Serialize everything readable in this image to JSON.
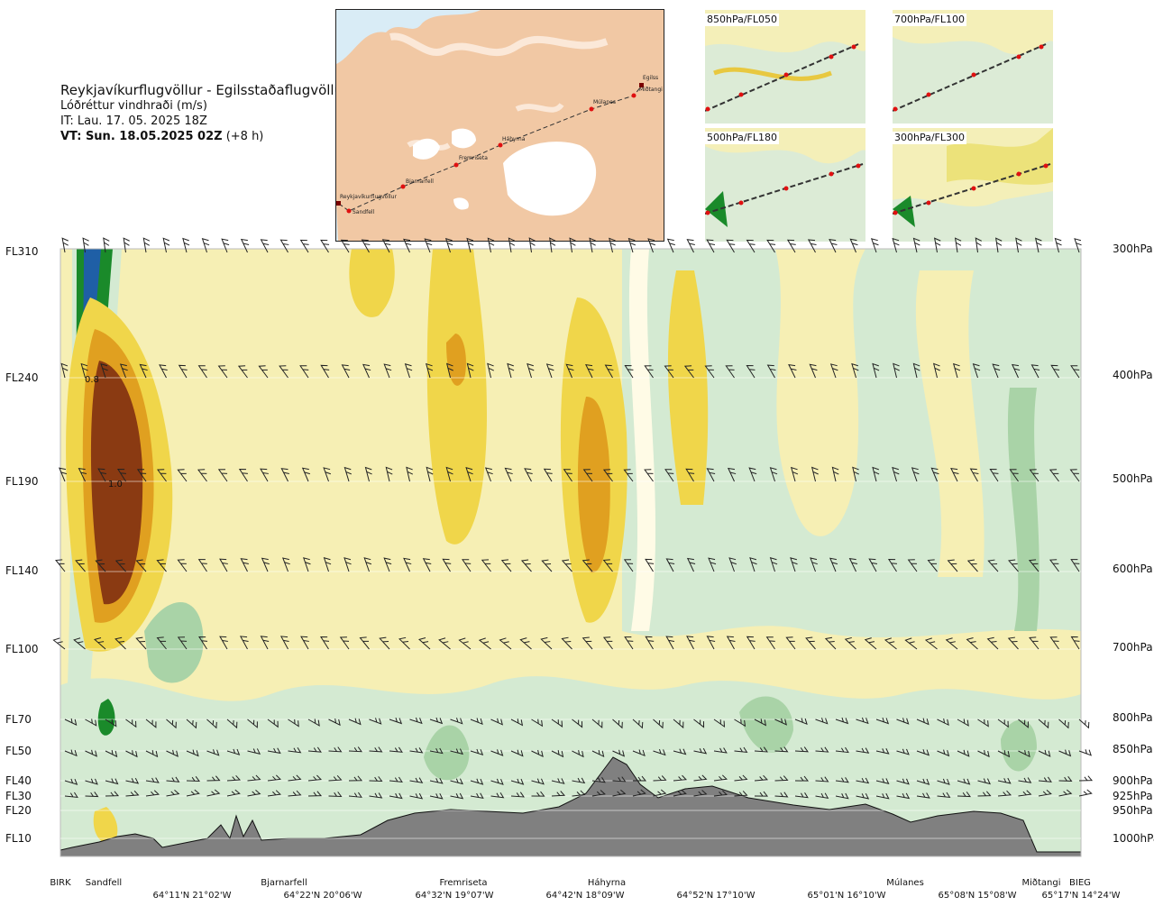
{
  "header": {
    "route_title": "Reykjavíkurflugvöllur - Egilsstaðaflugvöllur",
    "parameter": "Lóðréttur vindhraði (m/s)",
    "issue_time": "IT: Lau. 17. 05. 2025 18Z",
    "valid_label": "VT: Sun. 18.05.2025 02Z",
    "valid_offset": " (+8 h)"
  },
  "map": {
    "waypoints": [
      "Reykjavíkurflugvöllur",
      "Sandfell",
      "Bjarnarfell",
      "Fremriseta",
      "Háhyrna",
      "Múlanes",
      "Miðtangi",
      "Egilss"
    ]
  },
  "thumbnails": [
    {
      "label": "850hPa/FL050"
    },
    {
      "label": "700hPa/FL100"
    },
    {
      "label": "500hPa/FL180"
    },
    {
      "label": "300hPa/FL300"
    }
  ],
  "chart_data": {
    "type": "heatmap",
    "title": "Lóðréttur vindhraði (m/s)",
    "levels": [
      {
        "fl": "FL310",
        "hpa": "300hPa"
      },
      {
        "fl": "FL240",
        "hpa": "400hPa"
      },
      {
        "fl": "FL190",
        "hpa": "500hPa"
      },
      {
        "fl": "FL140",
        "hpa": "600hPa"
      },
      {
        "fl": "FL100",
        "hpa": "700hPa"
      },
      {
        "fl": "FL70",
        "hpa": "800hPa"
      },
      {
        "fl": "FL50",
        "hpa": "850hPa"
      },
      {
        "fl": "FL40",
        "hpa": "900hPa"
      },
      {
        "fl": "FL30",
        "hpa": "925hPa"
      },
      {
        "fl": "FL20",
        "hpa": "950hPa"
      },
      {
        "fl": "FL10",
        "hpa": "1000hPa"
      }
    ],
    "locations": [
      "BIRK",
      "Sandfell",
      "Bjarnarfell",
      "Fremriseta",
      "Háhyrna",
      "Múlanes",
      "Miðtangi",
      "BIEG"
    ],
    "coordinates": [
      "64°11'N 21°02'W",
      "64°22'N 20°06'W",
      "64°32'N 19°07'W",
      "64°42'N 18°09'W",
      "64°52'N 17°10'W",
      "65°01'N 16°10'W",
      "65°08'N 15°08'W",
      "65°17'N 14°24'W"
    ],
    "contour_labels": [
      "0.8",
      "1.0"
    ],
    "colors": {
      "strong_down": "#1f5fa6",
      "down": "#1a8a2a",
      "weak_down": "#d4ead2",
      "neutral": "#f6efb4",
      "weak_up": "#f0d64a",
      "up": "#e0a020",
      "strong_up": "#8a3a12",
      "terrain": "#808080"
    }
  }
}
